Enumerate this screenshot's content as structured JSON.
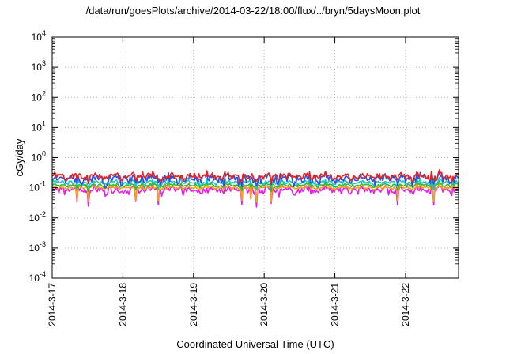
{
  "chart_data": {
    "type": "line",
    "title": "/data/run/goesPlots/archive/2014-03-22/18:00/flux/../bryn/5daysMoon.plot",
    "xlabel": "Coordinated Universal Time (UTC)",
    "ylabel": "cGy/day",
    "yscale": "log",
    "ylim": [
      0.0001,
      10000
    ],
    "y_ticks": [
      {
        "base": "10",
        "exp": "-4"
      },
      {
        "base": "10",
        "exp": "-3"
      },
      {
        "base": "10",
        "exp": "-2"
      },
      {
        "base": "10",
        "exp": "-1"
      },
      {
        "base": "10",
        "exp": "0"
      },
      {
        "base": "10",
        "exp": "1"
      },
      {
        "base": "10",
        "exp": "2"
      },
      {
        "base": "10",
        "exp": "3"
      },
      {
        "base": "10",
        "exp": "4"
      }
    ],
    "xlim": [
      "2014-03-17",
      "2014-03-22T18:00"
    ],
    "x_ticks": [
      "2014-3-17",
      "2014-3-18",
      "2014-3-19",
      "2014-3-20",
      "2014-3-21",
      "2014-3-22"
    ],
    "grid": true,
    "series": [
      {
        "color": "#e8201e",
        "base": 0.24,
        "amp": 0.08,
        "seed": 1
      },
      {
        "color": "#2a52e8",
        "base": 0.2,
        "amp": 0.09,
        "seed": 2
      },
      {
        "color": "#1fc7c0",
        "base": 0.15,
        "amp": 0.03,
        "seed": 3
      },
      {
        "color": "#38b531",
        "base": 0.12,
        "amp": 0.02,
        "seed": 4
      },
      {
        "color": "#f0a020",
        "base": 0.1,
        "amp": 0.015,
        "seed": 5
      },
      {
        "color": "#e81ee8",
        "base": 0.085,
        "amp": 0.03,
        "seed": 6
      }
    ]
  }
}
